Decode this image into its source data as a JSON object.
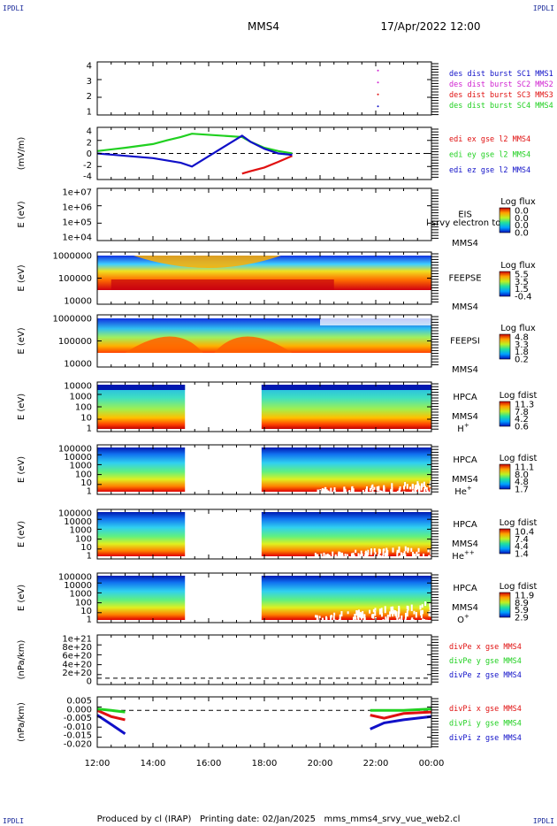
{
  "header": {
    "corner_left": "IPDLI",
    "corner_right": "IPDLI",
    "spacecraft": "MMS4",
    "datetime": "17/Apr/2022 12:00"
  },
  "footer": {
    "corner_left": "IPDLI",
    "corner_right": "IPDLI",
    "credits": "Produced by cl (IRAP)   Printing date: 02/Jan/2025   mms_mms4_srvy_vue_web2.cl"
  },
  "colors": {
    "blue": "#1010c8",
    "green": "#20d020",
    "red": "#e01010",
    "magenta": "#d020d0",
    "axis": "#000000"
  },
  "chart_data": {
    "type": "multi-panel time series / spectrogram",
    "x_axis": {
      "ticks": [
        "12:00",
        "14:00",
        "16:00",
        "18:00",
        "20:00",
        "22:00",
        "00:00"
      ],
      "range_hours": [
        12,
        24
      ]
    },
    "panels": [
      {
        "id": "des-dist",
        "type": "line",
        "ylabel": "",
        "yticks": [
          "4",
          "3",
          "2",
          "1"
        ],
        "ylim": [
          0.5,
          4.5
        ],
        "legend": [
          {
            "label": "des dist burst SC1 MMS1",
            "color": "#1010c8"
          },
          {
            "label": "des dist burst SC2 MMS2",
            "color": "#d020d0"
          },
          {
            "label": "des dist burst SC3 MMS3",
            "color": "#e01010"
          },
          {
            "label": "des dist burst SC4 MMS4",
            "color": "#20d020"
          }
        ],
        "points": [
          {
            "t": 22.08,
            "y": 4.0,
            "color": "#d020d0"
          },
          {
            "t": 22.08,
            "y": 3.0,
            "color": "#d020d0"
          },
          {
            "t": 22.08,
            "y": 2.0,
            "color": "#e01010"
          },
          {
            "t": 22.08,
            "y": 1.0,
            "color": "#1010c8"
          }
        ]
      },
      {
        "id": "edi",
        "type": "line",
        "ylabel": "(mV/m)",
        "yticks": [
          "4",
          "2",
          "0",
          "-2",
          "-4"
        ],
        "ylim": [
          -5,
          5
        ],
        "legend": [
          {
            "label": "edi ex gse l2 MMS4",
            "color": "#e01010"
          },
          {
            "label": "edi ey gse l2 MMS4",
            "color": "#20d020"
          },
          {
            "label": "edi ez gse l2 MMS4",
            "color": "#1010c8"
          }
        ],
        "series": [
          {
            "name": "edi ex gse l2 MMS4",
            "color": "#e01010",
            "t": [
              17.2,
              17.5,
              18.0,
              18.5,
              19.0
            ],
            "y": [
              -4.3,
              -3.8,
              -3.0,
              -1.8,
              -0.5
            ]
          },
          {
            "name": "edi ey gse l2 MMS4",
            "color": "#20d020",
            "t": [
              12.0,
              13.0,
              14.0,
              14.5,
              15.0,
              15.4,
              17.2,
              17.5,
              18.0,
              18.5,
              19.0
            ],
            "y": [
              0.5,
              1.2,
              2.0,
              2.8,
              3.5,
              4.2,
              3.5,
              2.5,
              1.2,
              0.5,
              0.0
            ]
          },
          {
            "name": "edi ez gse l2 MMS4",
            "color": "#1010c8",
            "t": [
              12.0,
              13.0,
              14.0,
              14.5,
              15.0,
              15.4,
              17.2,
              17.5,
              18.0,
              18.5,
              19.0
            ],
            "y": [
              0.0,
              -0.5,
              -1.0,
              -1.5,
              -2.0,
              -2.8,
              3.8,
              2.5,
              1.0,
              0.0,
              -0.3
            ]
          }
        ]
      },
      {
        "id": "eis",
        "type": "heatmap",
        "ylabel": "E (eV)",
        "yticks": [
          "1e+07",
          "1e+06",
          "1e+05",
          "1e+04"
        ],
        "right_labels": [
          "EIS",
          "MMS4"
        ],
        "overlay_text": "l srvy electron to",
        "colorbar_title": "Log flux",
        "colorbar_ticks": [
          "0.0",
          "0.0",
          "0.0",
          "0.0"
        ],
        "coverage": []
      },
      {
        "id": "feeps-e",
        "type": "heatmap",
        "ylabel": "E (eV)",
        "yticks": [
          "1000000",
          "100000",
          "10000"
        ],
        "right_labels": [
          "FEEPSE",
          "MMS4"
        ],
        "colorbar_title": "Log flux",
        "colorbar_ticks": [
          "5.5",
          "3.5",
          "1.5",
          "-0.4"
        ],
        "coverage": [
          [
            12,
            24
          ]
        ]
      },
      {
        "id": "feeps-i",
        "type": "heatmap",
        "ylabel": "E (eV)",
        "yticks": [
          "1000000",
          "100000",
          "10000"
        ],
        "right_labels": [
          "FEEPSI",
          "MMS4"
        ],
        "colorbar_title": "Log flux",
        "colorbar_ticks": [
          "4.8",
          "3.3",
          "1.8",
          "0.2"
        ],
        "coverage": [
          [
            12,
            24
          ]
        ]
      },
      {
        "id": "hpca-h",
        "type": "heatmap",
        "ylabel": "E (eV)",
        "yticks": [
          "10000",
          "1000",
          "100",
          "10",
          "1"
        ],
        "right_labels": [
          "HPCA",
          "MMS4"
        ],
        "species": "H",
        "species_sup": "+",
        "colorbar_title": "Log fdist",
        "colorbar_ticks": [
          "11.3",
          "7.8",
          "4.2",
          "0.6"
        ],
        "coverage": [
          [
            12,
            15.15
          ],
          [
            17.9,
            24
          ]
        ]
      },
      {
        "id": "hpca-he",
        "type": "heatmap",
        "ylabel": "E (eV)",
        "yticks": [
          "100000",
          "10000",
          "1000",
          "100",
          "10",
          "1"
        ],
        "right_labels": [
          "HPCA",
          "MMS4"
        ],
        "species": "He",
        "species_sup": "+",
        "colorbar_title": "Log fdist",
        "colorbar_ticks": [
          "11.1",
          "8.0",
          "4.8",
          "1.7"
        ],
        "coverage": [
          [
            12,
            15.15
          ],
          [
            17.9,
            24
          ]
        ]
      },
      {
        "id": "hpca-hepp",
        "type": "heatmap",
        "ylabel": "E (eV)",
        "yticks": [
          "100000",
          "10000",
          "1000",
          "100",
          "10",
          "1"
        ],
        "right_labels": [
          "HPCA",
          "MMS4"
        ],
        "species": "He",
        "species_sup": "++",
        "colorbar_title": "Log fdist",
        "colorbar_ticks": [
          "10.4",
          "7.4",
          "4.4",
          "1.4"
        ],
        "coverage": [
          [
            12,
            15.15
          ],
          [
            17.9,
            24
          ]
        ]
      },
      {
        "id": "hpca-o",
        "type": "heatmap",
        "ylabel": "E (eV)",
        "yticks": [
          "100000",
          "10000",
          "1000",
          "100",
          "10",
          "1"
        ],
        "right_labels": [
          "HPCA",
          "MMS4"
        ],
        "species": "O",
        "species_sup": "+",
        "colorbar_title": "Log fdist",
        "colorbar_ticks": [
          "11.9",
          "8.9",
          "5.9",
          "2.9"
        ],
        "coverage": [
          [
            12,
            15.15
          ],
          [
            17.9,
            24
          ]
        ]
      },
      {
        "id": "divpe",
        "type": "line",
        "ylabel": "(nPa/km)",
        "yticks": [
          "1e+21",
          "8e+20",
          "6e+20",
          "4e+20",
          "2e+20",
          "0"
        ],
        "ylim": [
          -1e+20,
          1.1e+21
        ],
        "legend": [
          {
            "label": "divPe x gse MMS4",
            "color": "#e01010"
          },
          {
            "label": "divPe y gse MMS4",
            "color": "#20d020"
          },
          {
            "label": "divPe z gse MMS4",
            "color": "#1010c8"
          }
        ],
        "series": []
      },
      {
        "id": "divpi",
        "type": "line",
        "ylabel": "(nPa/km)",
        "yticks": [
          "0.005",
          "0.000",
          "-0.005",
          "-0.010",
          "-0.015",
          "-0.020"
        ],
        "ylim": [
          -0.022,
          0.007
        ],
        "legend": [
          {
            "label": "divPi x gse MMS4",
            "color": "#e01010"
          },
          {
            "label": "divPi y gse MMS4",
            "color": "#20d020"
          },
          {
            "label": "divPi z gse MMS4",
            "color": "#1010c8"
          }
        ],
        "series": [
          {
            "name": "divPi x gse MMS4",
            "color": "#e01010",
            "t": [
              12.0,
              12.5,
              13.0,
              21.8,
              22.3,
              23.0,
              24.0
            ],
            "y": [
              0.0,
              -0.004,
              -0.006,
              -0.003,
              -0.005,
              -0.002,
              -0.001
            ]
          },
          {
            "name": "divPi y gse MMS4",
            "color": "#20d020",
            "t": [
              12.0,
              12.5,
              13.0,
              21.8,
              22.3,
              23.0,
              24.0
            ],
            "y": [
              0.001,
              0.0,
              -0.001,
              0.0,
              0.0,
              0.0,
              0.001
            ]
          },
          {
            "name": "divPi z gse MMS4",
            "color": "#1010c8",
            "t": [
              12.0,
              12.5,
              13.0,
              21.8,
              22.3,
              23.0,
              24.0
            ],
            "y": [
              -0.003,
              -0.009,
              -0.015,
              -0.012,
              -0.008,
              -0.006,
              -0.004
            ]
          }
        ]
      }
    ]
  }
}
